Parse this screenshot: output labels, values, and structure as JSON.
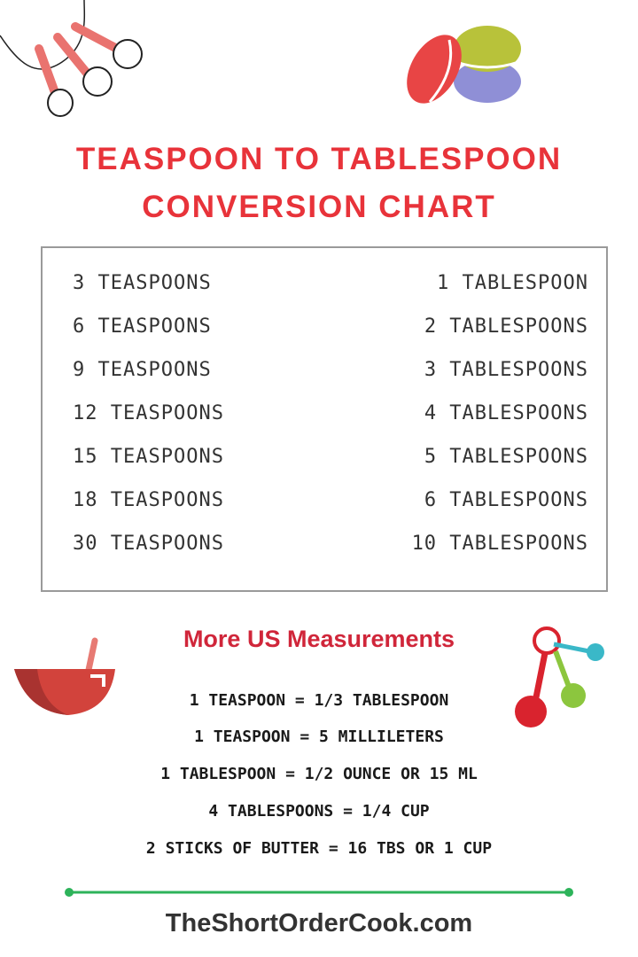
{
  "title": {
    "line1": "TEASPOON TO TABLESPOON",
    "line2": "CONVERSION CHART"
  },
  "conversions": [
    {
      "teaspoons": "3 TEASPOONS",
      "tablespoons": "1 TABLESPOON"
    },
    {
      "teaspoons": "6 TEASPOONS",
      "tablespoons": "2 TABLESPOONS"
    },
    {
      "teaspoons": "9 TEASPOONS",
      "tablespoons": "3 TABLESPOONS"
    },
    {
      "teaspoons": "12 TEASPOONS",
      "tablespoons": "4 TABLESPOONS"
    },
    {
      "teaspoons": "15 TEASPOONS",
      "tablespoons": "5 TABLESPOONS"
    },
    {
      "teaspoons": "18 TEASPOONS",
      "tablespoons": "6 TABLESPOONS"
    },
    {
      "teaspoons": "30 TEASPOONS",
      "tablespoons": "10 TABLESPOONS"
    }
  ],
  "more": {
    "heading": "More US Measurements",
    "items": [
      "1 TEASPOON = 1/3 TABLESPOON",
      "1 TEASPOON = 5 MILLILETERS",
      "1 TABLESPOON = 1/2 OUNCE OR 15 ML",
      "4 TABLESPOONS = 1/4 CUP",
      "2 STICKS OF BUTTER = 16 TBS OR 1 CUP"
    ]
  },
  "footer": {
    "site": "TheShortOrderCook.com"
  },
  "colors": {
    "title": "#e8333a",
    "heading": "#d0263a",
    "divider": "#2db35a",
    "text": "#333333"
  },
  "icons": [
    "measuring-spoons-icon",
    "macarons-icon",
    "mixing-bowl-icon",
    "measuring-cups-icon"
  ]
}
